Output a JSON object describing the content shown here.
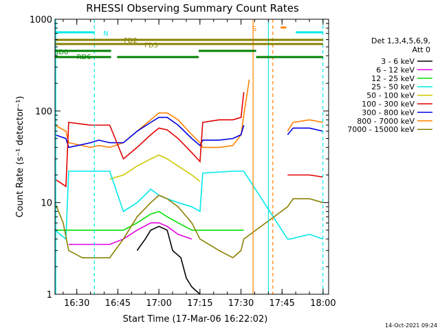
{
  "chart_data": {
    "type": "line",
    "title": "RHESSI Observing Summary Count Rates",
    "xlabel": "Start Time (17-Mar-06 16:22:02)",
    "ylabel": "Count Rate (s⁻¹ detector⁻¹)",
    "yscale": "log",
    "ylim": [
      1,
      1000
    ],
    "yticks": [
      "1",
      "10",
      "100",
      "1000"
    ],
    "xlim_minutes": [
      0,
      100
    ],
    "xticks": [
      {
        "label": "16:30",
        "minute": 7.97
      },
      {
        "label": "16:45",
        "minute": 22.97
      },
      {
        "label": "17:00",
        "minute": 37.97
      },
      {
        "label": "17:15",
        "minute": 52.97
      },
      {
        "label": "17:30",
        "minute": 67.97
      },
      {
        "label": "17:45",
        "minute": 82.97
      },
      {
        "label": "18:00",
        "minute": 97.97
      }
    ],
    "legend": {
      "placement": "right",
      "header": [
        "Det 1,3,4,5,6,9,",
        "Att 0"
      ],
      "entries": [
        {
          "name": "3 - 6 keV",
          "color": "#000000"
        },
        {
          "name": "6 - 12 keV",
          "color": "#e000e0"
        },
        {
          "name": "12 - 25 keV",
          "color": "#00e000"
        },
        {
          "name": "25 - 50 keV",
          "color": "#00e8e8"
        },
        {
          "name": "50 - 100 keV",
          "color": "#d0c800"
        },
        {
          "name": "100 - 300 keV",
          "color": "#e00000"
        },
        {
          "name": "300 - 800 keV",
          "color": "#0000e0"
        },
        {
          "name": "800 - 7000 keV",
          "color": "#ff8000"
        },
        {
          "name": "7000 - 15000 keV",
          "color": "#888000"
        }
      ]
    },
    "series": [
      {
        "name": "800 - 7000 keV",
        "color": "#ff8000",
        "x": [
          0,
          4,
          5,
          13,
          16,
          20,
          25,
          30,
          35,
          38,
          41,
          45,
          50,
          53,
          54,
          60,
          65,
          68,
          69,
          71,
          71.5,
          74,
          78,
          80,
          82,
          85,
          87,
          93,
          98
        ],
        "y": [
          70,
          60,
          45,
          40,
          42,
          40,
          45,
          60,
          80,
          95,
          95,
          80,
          55,
          45,
          40,
          40,
          42,
          55,
          90,
          220,
          0,
          0,
          0,
          0,
          0,
          60,
          75,
          80,
          75
        ]
      },
      {
        "name": "300 - 800 keV",
        "color": "#0000e0",
        "x": [
          0,
          4,
          5,
          13,
          16,
          20,
          25,
          30,
          35,
          38,
          41,
          45,
          50,
          53,
          54,
          60,
          65,
          68,
          69,
          71,
          85,
          87,
          93,
          98
        ],
        "y": [
          55,
          50,
          40,
          45,
          48,
          45,
          45,
          60,
          75,
          85,
          85,
          70,
          50,
          42,
          48,
          48,
          50,
          55,
          70,
          0,
          55,
          65,
          65,
          60
        ]
      },
      {
        "name": "100 - 300 keV",
        "color": "#e00000",
        "x": [
          0,
          4,
          5,
          13,
          20,
          25,
          30,
          35,
          38,
          41,
          45,
          50,
          53,
          54,
          60,
          65,
          68,
          69,
          71,
          85,
          86,
          93,
          98
        ],
        "y": [
          18,
          15,
          75,
          70,
          70,
          30,
          40,
          55,
          65,
          62,
          50,
          35,
          28,
          75,
          80,
          80,
          85,
          160,
          0,
          20,
          20,
          20,
          19
        ]
      },
      {
        "name": "50 - 100 keV",
        "color": "#d0c800",
        "x": [
          20,
          25,
          30,
          35,
          38,
          41,
          45,
          50,
          53
        ],
        "y": [
          18,
          20,
          25,
          30,
          33,
          30,
          25,
          20,
          17
        ]
      },
      {
        "name": "25 - 50 keV",
        "color": "#00e8e8",
        "x": [
          0,
          4,
          5,
          13,
          20,
          25,
          30,
          35,
          38,
          41,
          45,
          50,
          53,
          54,
          65,
          68,
          69,
          85,
          86,
          93,
          98
        ],
        "y": [
          5,
          4,
          22,
          22,
          22,
          8,
          10,
          14,
          12,
          11,
          10,
          9,
          8,
          21,
          22,
          22,
          22,
          4,
          4,
          4.5,
          4
        ]
      },
      {
        "name": "12 - 25 keV",
        "color": "#00e000",
        "x": [
          0,
          4,
          5,
          13,
          20,
          25,
          30,
          35,
          38,
          41,
          45,
          50,
          53,
          54,
          65,
          68,
          69
        ],
        "y": [
          5,
          5,
          5,
          5,
          5,
          5,
          6,
          7.5,
          8,
          7,
          6,
          5,
          5,
          5,
          5,
          5,
          5
        ]
      },
      {
        "name": "6 - 12 keV",
        "color": "#e000e0",
        "x": [
          5,
          13,
          20,
          25,
          30,
          35,
          38,
          41,
          45,
          50
        ],
        "y": [
          3.5,
          3.5,
          3.5,
          4,
          5,
          6,
          6,
          5.5,
          4.5,
          4
        ]
      },
      {
        "name": "7000 - 15000 keV",
        "color": "#888000",
        "x": [
          0,
          3,
          5,
          10,
          13,
          20,
          25,
          30,
          35,
          38,
          41,
          45,
          50,
          53,
          60,
          65,
          68,
          69,
          85,
          87,
          93,
          98
        ],
        "y": [
          10,
          6,
          3,
          2.5,
          2.5,
          2.5,
          4,
          7,
          10,
          12,
          11,
          9,
          6,
          4,
          3,
          2.5,
          3,
          4,
          9,
          11,
          11,
          10
        ]
      },
      {
        "name": "3 - 6 keV",
        "color": "#000000",
        "x": [
          30,
          33,
          35,
          38,
          41,
          43,
          46,
          48,
          50,
          53
        ],
        "y": [
          3,
          4,
          5,
          5.5,
          5,
          3,
          2.5,
          1.5,
          1.2,
          1
        ]
      }
    ],
    "state_bars": [
      {
        "label": "N",
        "color": "#00e8e8",
        "segments": [
          [
            0,
            14.4
          ],
          [
            88,
            98
          ]
        ]
      },
      {
        "label": "S",
        "color": "#ff8000",
        "segments": [
          [
            82.5,
            84.5
          ]
        ]
      },
      {
        "label": "FD2",
        "color": "#888000",
        "segments": [
          [
            0,
            98
          ]
        ]
      },
      {
        "label": "FD3",
        "color": "#888000",
        "segments": [
          [
            0,
            98
          ]
        ]
      },
      {
        "label": "BD0",
        "color": "#008000",
        "segments": [
          [
            0,
            20.5
          ],
          [
            52.5,
            73.5
          ]
        ]
      },
      {
        "label": "RD6",
        "color": "#008000",
        "segments": [
          [
            0,
            20.5
          ],
          [
            22.7,
            52.5
          ],
          [
            73.5,
            98
          ]
        ]
      }
    ],
    "vertical_lines": [
      {
        "minute": 0.3,
        "color": "#00e8e8",
        "style": "solid"
      },
      {
        "minute": 14.4,
        "color": "#00e8e8",
        "style": "dashed"
      },
      {
        "minute": 72.4,
        "color": "#ff8000",
        "style": "solid"
      },
      {
        "minute": 78.0,
        "color": "#00e8e8",
        "style": "solid"
      },
      {
        "minute": 79.6,
        "color": "#ff8000",
        "style": "dashed"
      },
      {
        "minute": 97.9,
        "color": "#00e8e8",
        "style": "dashed"
      }
    ]
  },
  "footer": {
    "timestamp": "14-Oct-2021 09:24"
  }
}
